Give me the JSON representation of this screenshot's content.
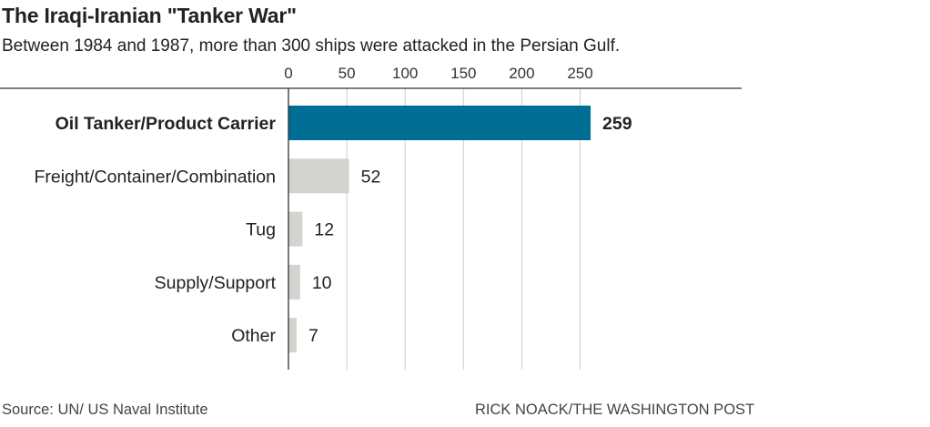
{
  "title": "The Iraqi-Iranian \"Tanker War\"",
  "subtitle": "Between 1984 and 1987, more than 300 ships were attacked in the Persian Gulf.",
  "footer": {
    "source": "Source: UN/ US Naval Institute",
    "credit": "RICK NOACK/THE WASHINGTON POST"
  },
  "colors": {
    "highlight": "#006d95",
    "default_bar": "#d3d3cf",
    "grid": "#cccccc",
    "axis": "#333333"
  },
  "chart_data": {
    "type": "bar",
    "orientation": "horizontal",
    "title": "The Iraqi-Iranian \"Tanker War\"",
    "subtitle": "Between 1984 and 1987, more than 300 ships were attacked in the Persian Gulf.",
    "categories": [
      "Oil Tanker/Product Carrier",
      "Freight/Container/Combination",
      "Tug",
      "Supply/Support",
      "Other"
    ],
    "values": [
      259,
      52,
      12,
      10,
      7
    ],
    "highlighted_index": 0,
    "xlim": [
      0,
      260
    ],
    "xticks": [
      0,
      50,
      100,
      150,
      200,
      250
    ],
    "xtick_position": "top",
    "grid": true,
    "legend": "none"
  }
}
